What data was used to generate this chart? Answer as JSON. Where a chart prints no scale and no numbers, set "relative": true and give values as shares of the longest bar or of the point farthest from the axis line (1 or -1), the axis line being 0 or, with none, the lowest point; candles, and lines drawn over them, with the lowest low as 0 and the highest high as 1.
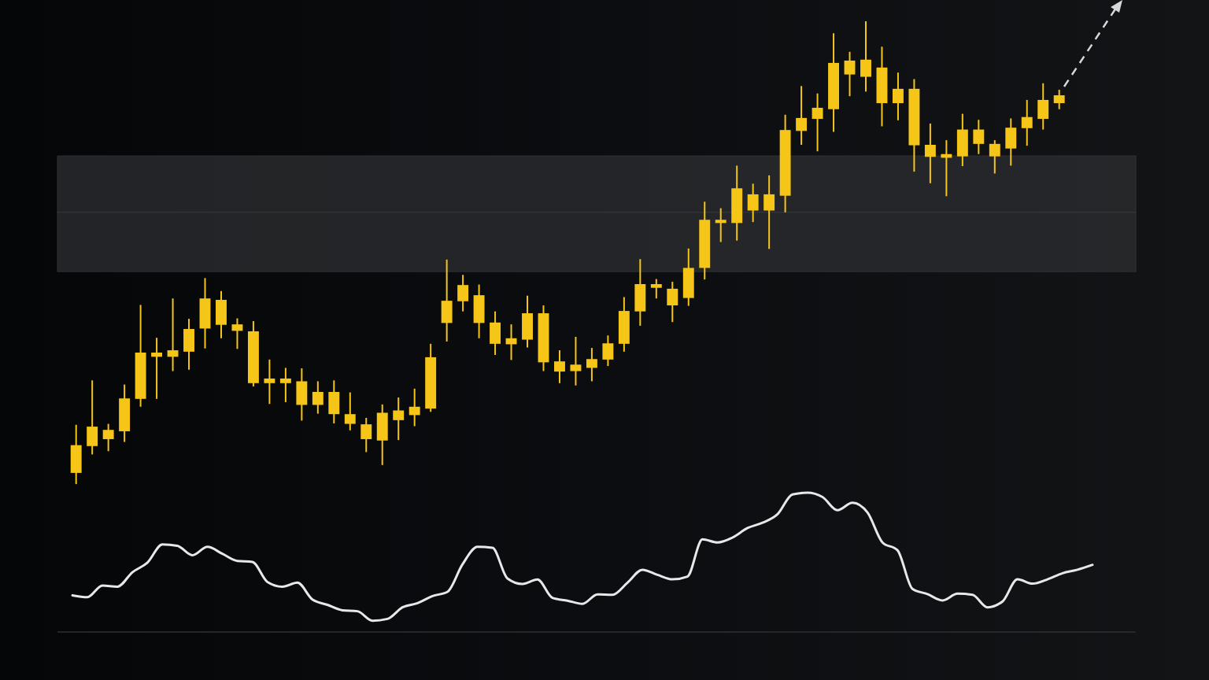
{
  "chart_data": [
    {
      "type": "candlestick",
      "relative": true,
      "color": "#f5c518",
      "categories": [
        null,
        null,
        null,
        null,
        null,
        null,
        null,
        null,
        null,
        null,
        null,
        null,
        null,
        null,
        null,
        null,
        null,
        null,
        null,
        null,
        null,
        null,
        null,
        null,
        null,
        null,
        null,
        null,
        null,
        null,
        null,
        null,
        null,
        null,
        null,
        null,
        null,
        null,
        null,
        null,
        null,
        null,
        null,
        null,
        null,
        null,
        null,
        null,
        null,
        null,
        null,
        null,
        null,
        null,
        null,
        null,
        null,
        null,
        null,
        null,
        null,
        null
      ],
      "ohlc": [
        [
          0.024,
          0.128,
          0,
          0.084
        ],
        [
          0.082,
          0.224,
          0.064,
          0.124
        ],
        [
          0.097,
          0.13,
          0.071,
          0.117
        ],
        [
          0.114,
          0.215,
          0.091,
          0.185
        ],
        [
          0.184,
          0.387,
          0.167,
          0.284
        ],
        [
          0.275,
          0.316,
          0.184,
          0.284
        ],
        [
          0.275,
          0.401,
          0.244,
          0.289
        ],
        [
          0.286,
          0.357,
          0.247,
          0.335
        ],
        [
          0.336,
          0.445,
          0.293,
          0.401
        ],
        [
          0.344,
          0.417,
          0.315,
          0.398
        ],
        [
          0.331,
          0.358,
          0.292,
          0.345
        ],
        [
          0.218,
          0.352,
          0.211,
          0.33
        ],
        [
          0.218,
          0.269,
          0.173,
          0.228
        ],
        [
          0.218,
          0.251,
          0.177,
          0.228
        ],
        [
          0.171,
          0.25,
          0.137,
          0.222
        ],
        [
          0.171,
          0.222,
          0.152,
          0.199
        ],
        [
          0.151,
          0.224,
          0.131,
          0.199
        ],
        [
          0.13,
          0.198,
          0.116,
          0.151
        ],
        [
          0.097,
          0.143,
          0.069,
          0.129
        ],
        [
          0.094,
          0.172,
          0.041,
          0.154
        ],
        [
          0.138,
          0.187,
          0.095,
          0.159
        ],
        [
          0.149,
          0.206,
          0.125,
          0.167
        ],
        [
          0.163,
          0.303,
          0.156,
          0.274
        ],
        [
          0.348,
          0.485,
          0.308,
          0.396
        ],
        [
          0.395,
          0.452,
          0.373,
          0.43
        ],
        [
          0.348,
          0.431,
          0.315,
          0.408
        ],
        [
          0.303,
          0.373,
          0.279,
          0.349
        ],
        [
          0.302,
          0.345,
          0.268,
          0.315
        ],
        [
          0.312,
          0.407,
          0.295,
          0.369
        ],
        [
          0.263,
          0.386,
          0.244,
          0.369
        ],
        [
          0.243,
          0.289,
          0.218,
          0.265
        ],
        [
          0.244,
          0.318,
          0.213,
          0.258
        ],
        [
          0.251,
          0.294,
          0.222,
          0.27
        ],
        [
          0.269,
          0.321,
          0.255,
          0.304
        ],
        [
          0.303,
          0.404,
          0.286,
          0.374
        ],
        [
          0.373,
          0.486,
          0.342,
          0.432
        ],
        [
          0.424,
          0.443,
          0.401,
          0.432
        ],
        [
          0.386,
          0.437,
          0.35,
          0.422
        ],
        [
          0.402,
          0.509,
          0.385,
          0.467
        ],
        [
          0.467,
          0.61,
          0.442,
          0.571
        ],
        [
          0.564,
          0.596,
          0.523,
          0.571
        ],
        [
          0.564,
          0.688,
          0.526,
          0.639
        ],
        [
          0.591,
          0.649,
          0.566,
          0.626
        ],
        [
          0.591,
          0.667,
          0.508,
          0.626
        ],
        [
          0.623,
          0.798,
          0.587,
          0.765
        ],
        [
          0.763,
          0.86,
          0.733,
          0.791
        ],
        [
          0.789,
          0.844,
          0.719,
          0.813
        ],
        [
          0.81,
          0.974,
          0.761,
          0.91
        ],
        [
          0.885,
          0.934,
          0.838,
          0.915
        ],
        [
          0.88,
          1,
          0.848,
          0.917
        ],
        [
          0.823,
          0.945,
          0.773,
          0.9
        ],
        [
          0.823,
          0.889,
          0.786,
          0.854
        ],
        [
          0.732,
          0.875,
          0.675,
          0.854
        ],
        [
          0.707,
          0.779,
          0.65,
          0.733
        ],
        [
          0.705,
          0.743,
          0.622,
          0.713
        ],
        [
          0.708,
          0.8,
          0.687,
          0.766
        ],
        [
          0.735,
          0.787,
          0.713,
          0.766
        ],
        [
          0.708,
          0.743,
          0.671,
          0.735
        ],
        [
          0.725,
          0.79,
          0.688,
          0.77
        ],
        [
          0.769,
          0.83,
          0.731,
          0.793
        ],
        [
          0.789,
          0.866,
          0.766,
          0.83
        ],
        [
          0.823,
          0.852,
          0.81,
          0.84
        ]
      ],
      "bands": [
        {
          "axis": "y",
          "from": 0.587,
          "to": 0.709,
          "color": "#2a2c2f"
        },
        {
          "axis": "y",
          "from": 0.459,
          "to": 0.587,
          "color": "#2a2c2f"
        }
      ]
    },
    {
      "type": "line",
      "relative": true,
      "categories": [
        null,
        null,
        null,
        null,
        null,
        null,
        null,
        null,
        null,
        null,
        null,
        null,
        null,
        null,
        null,
        null,
        null,
        null,
        null,
        null,
        null,
        null,
        null,
        null,
        null,
        null,
        null,
        null,
        null,
        null,
        null,
        null,
        null,
        null,
        null,
        null,
        null,
        null,
        null,
        null,
        null,
        null,
        null,
        null,
        null,
        null,
        null,
        null,
        null,
        null,
        null,
        null,
        null,
        null,
        null,
        null,
        null,
        null,
        null,
        null,
        null,
        null,
        null,
        null,
        null,
        null,
        null,
        null,
        null
      ],
      "series": [
        {
          "color": "#e8e8e8",
          "values": [
            0.263,
            0.25,
            0.334,
            0.325,
            0.429,
            0.498,
            0.629,
            0.619,
            0.551,
            0.611,
            0.561,
            0.51,
            0.503,
            0.359,
            0.325,
            0.354,
            0.233,
            0.195,
            0.156,
            0.149,
            0.081,
            0.094,
            0.177,
            0.207,
            0.258,
            0.288,
            0.485,
            0.611,
            0.604,
            0.384,
            0.344,
            0.377,
            0.245,
            0.225,
            0.202,
            0.27,
            0.267,
            0.354,
            0.447,
            0.41,
            0.378,
            0.398,
            0.665,
            0.643,
            0.678,
            0.746,
            0.784,
            0.845,
            0.987,
            1,
            0.969,
            0.874,
            0.928,
            0.858,
            0.643,
            0.587,
            0.309,
            0.272,
            0.226,
            0.275,
            0.267,
            0.177,
            0.219,
            0.378,
            0.347,
            0.378,
            0.422,
            0.447,
            0.482
          ]
        }
      ]
    }
  ]
}
